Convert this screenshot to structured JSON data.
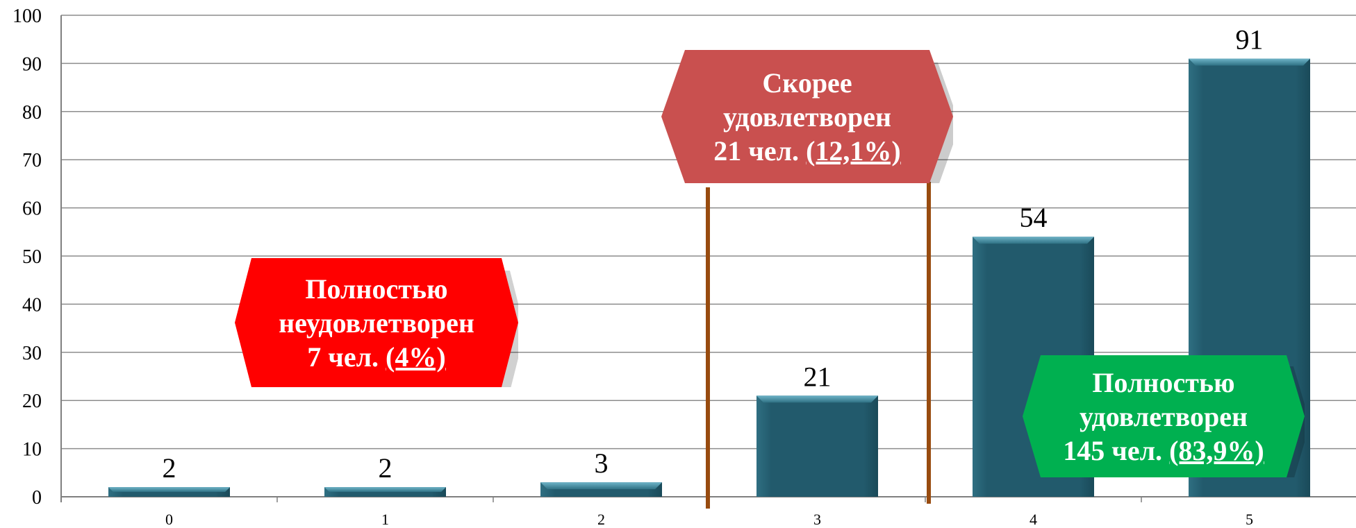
{
  "colors": {
    "bar": "#225a6c",
    "bar_light": "#3e8499",
    "grid": "#8c8c8c",
    "axis": "#7f7f7f",
    "divider": "#984b0f",
    "callout_low": "#ff0000",
    "callout_mid": "#c9504f",
    "callout_high": "#00b050"
  },
  "chart_data": {
    "type": "bar",
    "categories": [
      "0",
      "1",
      "2",
      "3",
      "4",
      "5"
    ],
    "values": [
      2,
      2,
      3,
      21,
      54,
      91
    ],
    "ylim": [
      0,
      100
    ],
    "yticks": [
      0,
      10,
      20,
      30,
      40,
      50,
      60,
      70,
      80,
      90,
      100
    ],
    "grid": true,
    "title": "",
    "xlabel": "",
    "ylabel": ""
  },
  "callouts": {
    "low": {
      "line1": "Полностью",
      "line2": "неудовлетворен",
      "count": "7 чел.",
      "percent": "(4%)"
    },
    "mid": {
      "line1": "Скорее",
      "line2": "удовлетворен",
      "count": "21 чел.",
      "percent": "(12,1%)"
    },
    "high": {
      "line1": "Полностью",
      "line2": "удовлетворен",
      "count": "145 чел.",
      "percent": "(83,9%)"
    }
  }
}
